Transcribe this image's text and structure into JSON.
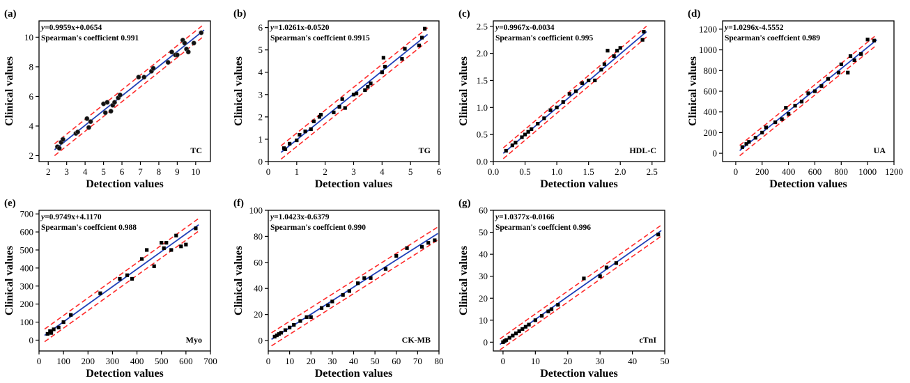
{
  "chart_data": [
    {
      "type": "scatter",
      "panel_label": "(a)",
      "tag": "TC",
      "equation_prefix": "y",
      "equation_rest": "=0.9959x+0.0654",
      "spearman": "Spearman's coefficient 0.991",
      "xlabel": "Detection values",
      "ylabel": "Clinical values",
      "xlim": [
        1.5,
        10.8
      ],
      "ylim": [
        1.6,
        11.1
      ],
      "xticks": [
        2,
        3,
        4,
        5,
        6,
        7,
        8,
        9,
        10
      ],
      "yticks": [
        2,
        4,
        6,
        8,
        10
      ],
      "fit": {
        "slope": 0.9959,
        "intercept": 0.0654,
        "ci_offset": 0.4
      },
      "x": [
        2.5,
        2.6,
        2.7,
        2.8,
        3.5,
        3.6,
        4.1,
        4.2,
        4.3,
        5.0,
        5.1,
        5.2,
        5.4,
        5.5,
        5.6,
        5.8,
        5.9,
        6.9,
        7.2,
        7.6,
        7.7,
        8.5,
        8.7,
        8.9,
        9.0,
        9.3,
        9.4,
        9.5,
        9.6,
        9.9,
        10.3
      ],
      "y": [
        2.6,
        2.5,
        2.9,
        3.1,
        3.5,
        3.6,
        4.5,
        3.9,
        4.3,
        5.5,
        4.9,
        5.6,
        5.0,
        5.4,
        5.6,
        5.9,
        6.1,
        7.3,
        7.3,
        7.7,
        7.9,
        8.3,
        9.0,
        8.8,
        8.8,
        9.8,
        9.6,
        9.2,
        9.0,
        9.6,
        10.3
      ]
    },
    {
      "type": "scatter",
      "panel_label": "(b)",
      "tag": "TG",
      "equation_prefix": "y",
      "equation_rest": "=1.0261x-0.0520",
      "spearman": "Spearman's coeffcient 0.9915",
      "xlabel": "Detection values",
      "ylabel": "Clinical values",
      "xlim": [
        0,
        6
      ],
      "ylim": [
        0,
        6.3
      ],
      "xticks": [
        0,
        1,
        2,
        3,
        4,
        5,
        6
      ],
      "yticks": [
        0,
        1,
        2,
        3,
        4,
        5,
        6
      ],
      "fit": {
        "slope": 1.0261,
        "intercept": -0.052,
        "ci_offset": 0.3
      },
      "x": [
        0.55,
        0.6,
        0.75,
        1.0,
        1.1,
        1.3,
        1.5,
        1.6,
        1.8,
        1.85,
        2.3,
        2.5,
        2.6,
        2.7,
        3.0,
        3.1,
        3.4,
        3.5,
        3.6,
        4.0,
        4.05,
        4.1,
        4.7,
        4.8,
        5.3,
        5.4,
        5.5
      ],
      "y": [
        0.6,
        0.55,
        0.8,
        0.95,
        1.2,
        1.35,
        1.45,
        1.8,
        2.0,
        2.1,
        2.2,
        2.45,
        2.8,
        2.4,
        3.0,
        3.05,
        3.2,
        3.35,
        3.5,
        4.0,
        4.65,
        4.25,
        4.6,
        5.05,
        5.2,
        5.55,
        5.95
      ]
    },
    {
      "type": "scatter",
      "panel_label": "(c)",
      "tag": "HDL-C",
      "equation_prefix": "y",
      "equation_rest": "=0.9967x-0.0034",
      "spearman": "Spearman's coefficient 0.995",
      "xlabel": "Detection values",
      "ylabel": "Clinical values",
      "xlim": [
        0,
        2.7
      ],
      "ylim": [
        0,
        2.6
      ],
      "xticks": [
        0.0,
        0.5,
        1.0,
        1.5,
        2.0,
        2.5
      ],
      "yticks": [
        0.0,
        0.5,
        1.0,
        1.5,
        2.0,
        2.5
      ],
      "fit": {
        "slope": 0.9967,
        "intercept": -0.0034,
        "ci_offset": 0.1
      },
      "x": [
        0.2,
        0.3,
        0.35,
        0.45,
        0.5,
        0.55,
        0.6,
        0.7,
        0.8,
        0.9,
        1.0,
        1.1,
        1.2,
        1.3,
        1.4,
        1.5,
        1.6,
        1.7,
        1.75,
        1.8,
        1.9,
        1.95,
        2.0,
        2.35,
        2.37
      ],
      "y": [
        0.2,
        0.3,
        0.35,
        0.45,
        0.5,
        0.55,
        0.6,
        0.7,
        0.8,
        0.95,
        1.0,
        1.1,
        1.25,
        1.3,
        1.45,
        1.5,
        1.5,
        1.7,
        1.8,
        2.05,
        1.95,
        2.05,
        2.1,
        2.25,
        2.4
      ]
    },
    {
      "type": "scatter",
      "panel_label": "(d)",
      "tag": "UA",
      "equation_prefix": "y",
      "equation_rest": "=1.0296x-4.5552",
      "spearman": "Spearman's coeffcient 0.989",
      "xlabel": "Detection values",
      "ylabel": "Clinical values",
      "xlim": [
        -100,
        1200
      ],
      "ylim": [
        -80,
        1280
      ],
      "xticks": [
        0,
        200,
        400,
        600,
        800,
        1000,
        1200
      ],
      "yticks": [
        0,
        200,
        400,
        600,
        800,
        1000,
        1200
      ],
      "fit": {
        "slope": 1.0296,
        "intercept": -4.5552,
        "ci_offset": 50
      },
      "x": [
        50,
        80,
        100,
        150,
        200,
        230,
        300,
        350,
        380,
        400,
        450,
        500,
        550,
        600,
        650,
        700,
        780,
        800,
        850,
        870,
        900,
        950,
        1000,
        1050
      ],
      "y": [
        60,
        90,
        110,
        150,
        200,
        250,
        300,
        330,
        440,
        380,
        460,
        500,
        580,
        600,
        650,
        720,
        780,
        860,
        780,
        940,
        900,
        960,
        1100,
        1090
      ]
    },
    {
      "type": "scatter",
      "panel_label": "(e)",
      "tag": "Myo",
      "equation_prefix": "y",
      "equation_rest": "=0.9749x+4.1170",
      "spearman": "Spearman's coeffcient 0.988",
      "xlabel": "Detection values",
      "ylabel": "Clinical values",
      "xlim": [
        0,
        700
      ],
      "ylim": [
        -60,
        720
      ],
      "xticks": [
        0,
        100,
        200,
        300,
        400,
        500,
        600,
        700
      ],
      "yticks": [
        0,
        100,
        200,
        300,
        400,
        500,
        600,
        700
      ],
      "fit": {
        "slope": 0.9749,
        "intercept": 4.117,
        "ci_offset": 35
      },
      "x": [
        35,
        45,
        50,
        60,
        80,
        100,
        130,
        250,
        330,
        360,
        380,
        420,
        440,
        470,
        500,
        510,
        520,
        540,
        560,
        580,
        600,
        640
      ],
      "y": [
        35,
        50,
        40,
        60,
        70,
        100,
        140,
        260,
        340,
        360,
        340,
        450,
        500,
        410,
        540,
        510,
        540,
        500,
        580,
        520,
        530,
        620
      ]
    },
    {
      "type": "scatter",
      "panel_label": "(f)",
      "tag": "CK-MB",
      "equation_prefix": "y",
      "equation_rest": "=1.0423x-0.6379",
      "spearman": "Spearman's coeffcient 0.990",
      "xlabel": "Detection values",
      "ylabel": "Clinical values",
      "xlim": [
        0,
        80
      ],
      "ylim": [
        -8,
        100
      ],
      "xticks": [
        0,
        10,
        20,
        30,
        40,
        50,
        60,
        70,
        80
      ],
      "yticks": [
        0,
        20,
        40,
        60,
        80,
        100
      ],
      "fit": {
        "slope": 1.0423,
        "intercept": -0.6379,
        "ci_offset": 5
      },
      "x": [
        3,
        4,
        5,
        6,
        8,
        10,
        12,
        15,
        18,
        20,
        25,
        28,
        30,
        35,
        38,
        42,
        45,
        48,
        55,
        60,
        65,
        72,
        75,
        78
      ],
      "y": [
        3,
        4,
        5,
        6,
        8,
        10,
        12,
        15,
        18,
        18,
        25,
        27,
        30,
        35,
        38,
        44,
        48,
        48,
        55,
        65,
        71,
        72,
        75,
        77
      ]
    },
    {
      "type": "scatter",
      "panel_label": "(g)",
      "tag": "cTnI",
      "equation_prefix": "y",
      "equation_rest": "=1.0377x-0.0166",
      "spearman": "Spearman's coeffcient 0.996",
      "xlabel": "Detection values",
      "ylabel": "Clinical values",
      "xlim": [
        -3,
        50
      ],
      "ylim": [
        -4,
        60
      ],
      "xticks": [
        0,
        10,
        20,
        30,
        40,
        50
      ],
      "yticks": [
        0,
        10,
        20,
        30,
        40,
        50,
        60
      ],
      "fit": {
        "slope": 1.0377,
        "intercept": -0.0166,
        "ci_offset": 2.5
      },
      "x": [
        0,
        0.5,
        1,
        2,
        3,
        4,
        5,
        6,
        7,
        8,
        10,
        12,
        14,
        15,
        17,
        25,
        30,
        32,
        35,
        48
      ],
      "y": [
        0,
        0.5,
        1,
        2,
        3,
        4,
        5,
        6,
        7,
        8,
        10,
        12,
        14,
        15,
        17,
        29,
        30,
        34,
        36,
        49
      ]
    }
  ]
}
